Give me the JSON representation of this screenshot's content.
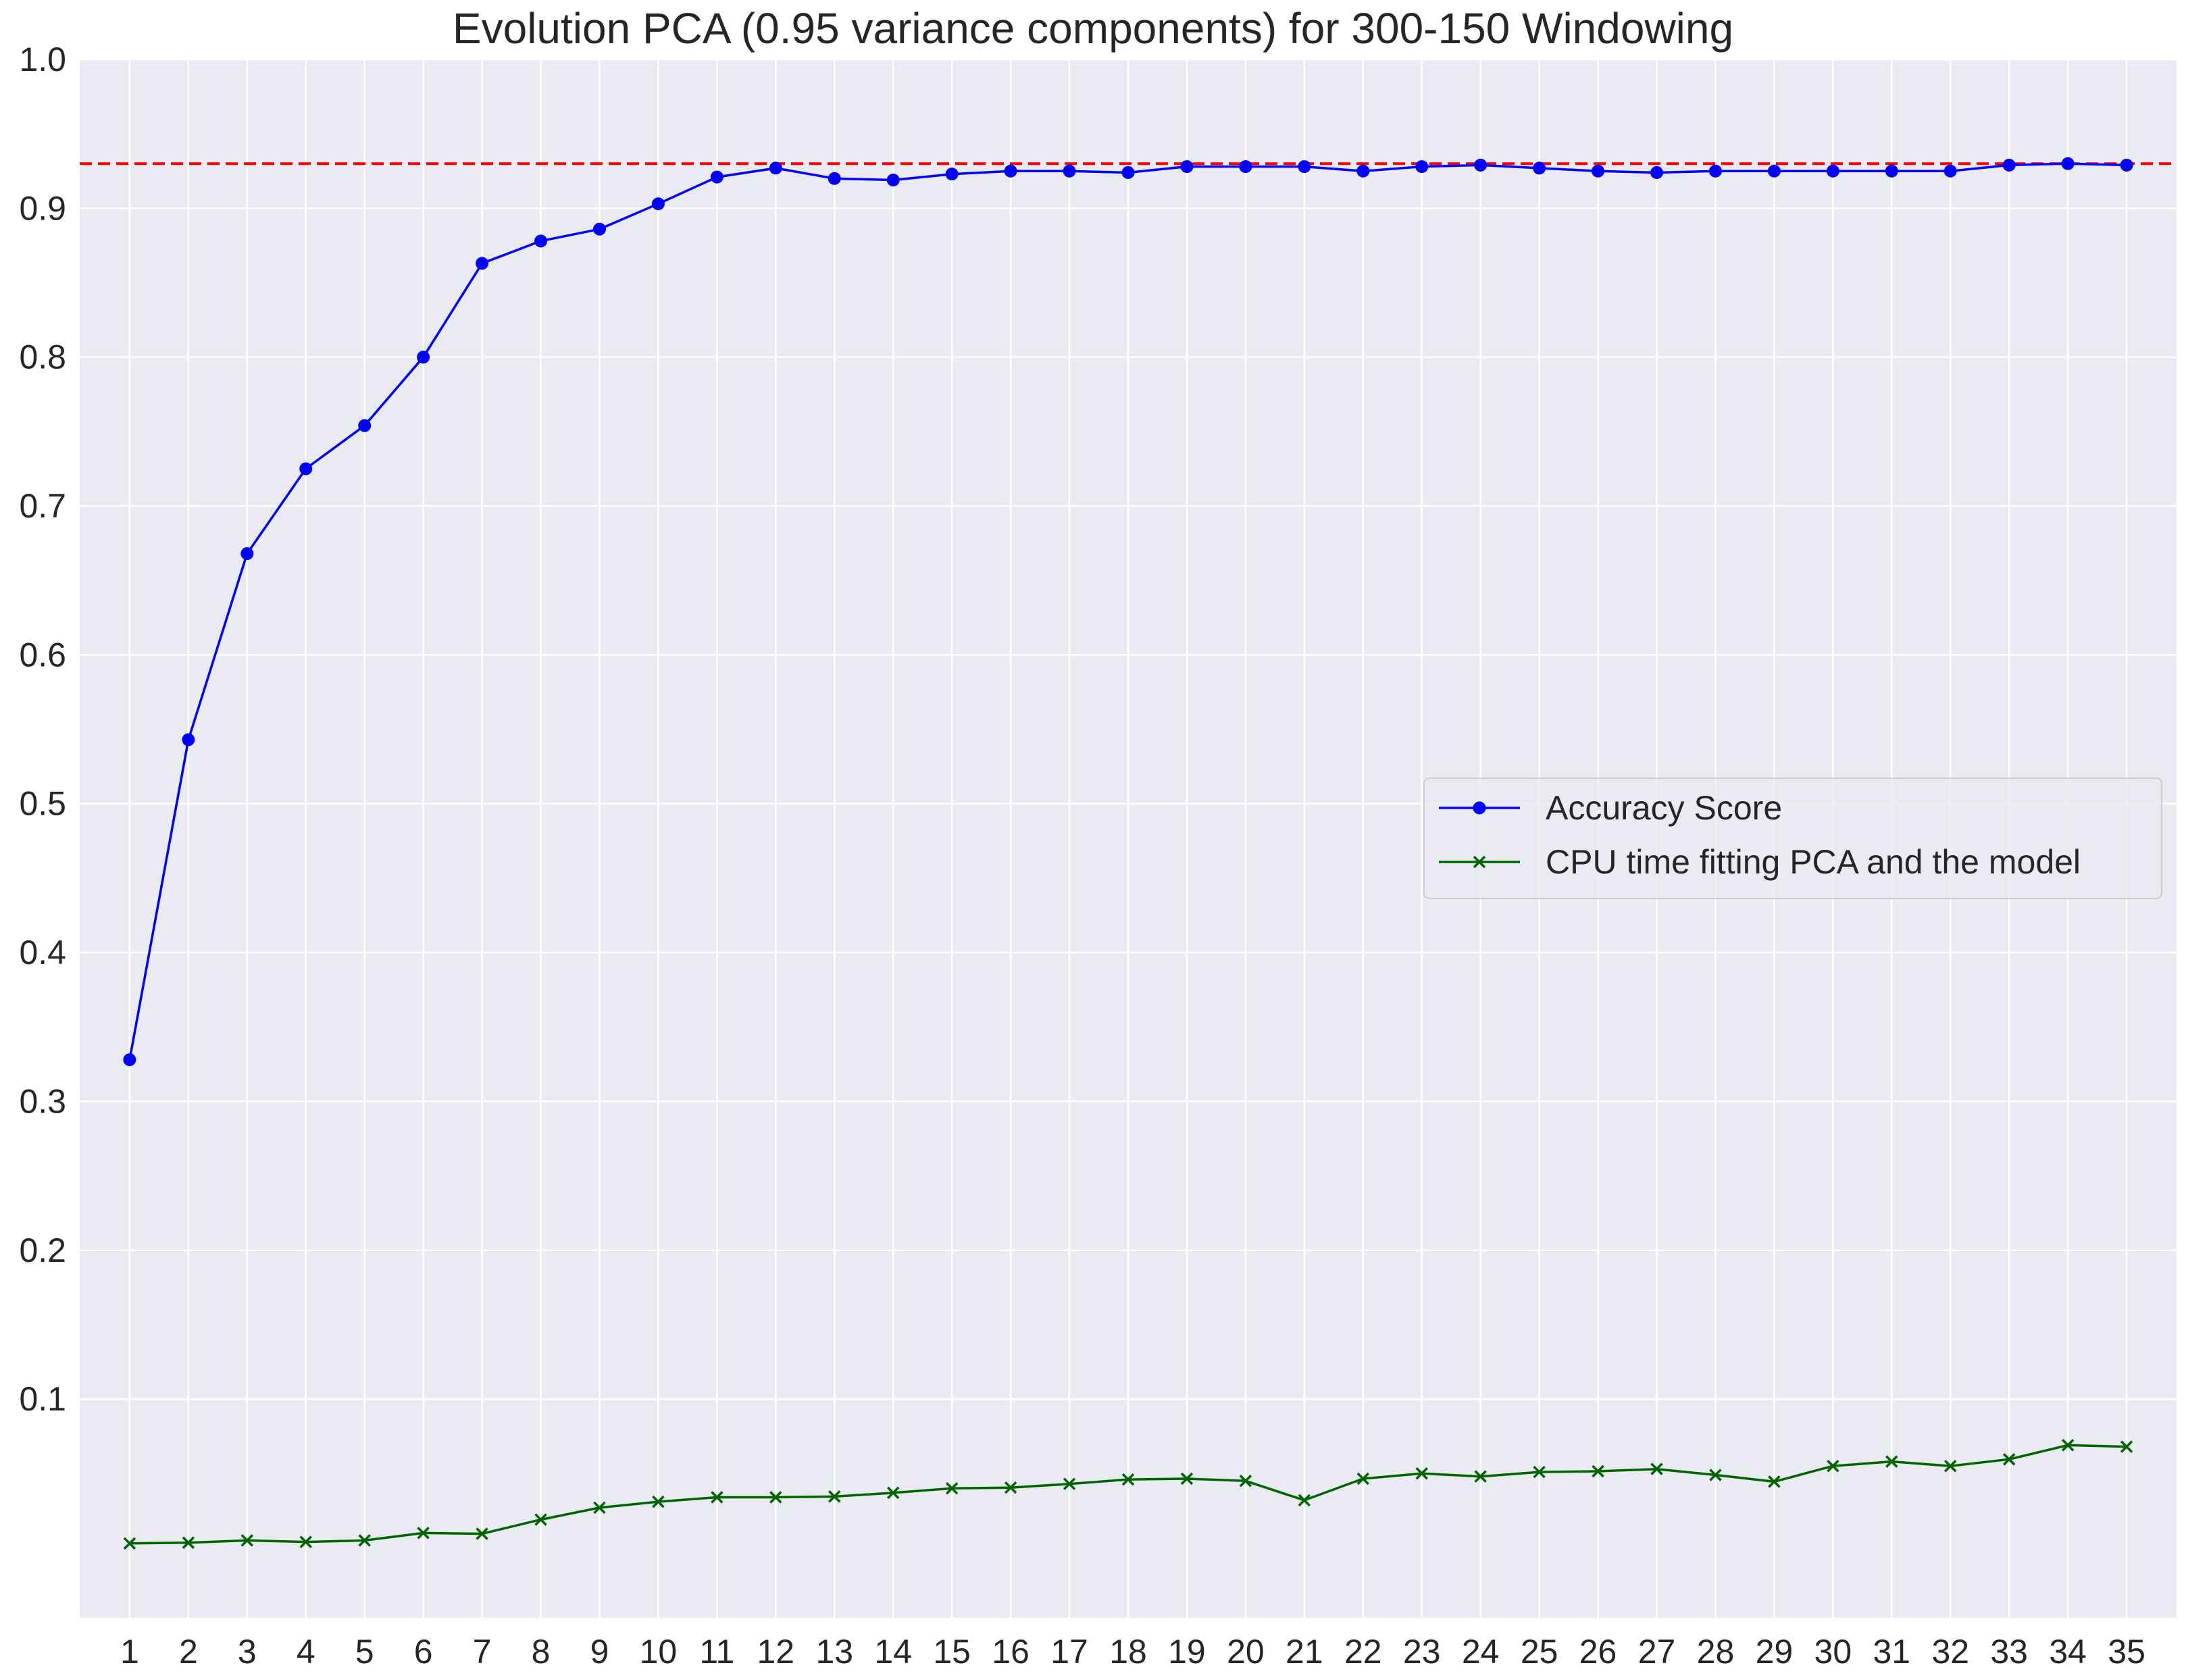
{
  "chart_data": {
    "type": "line",
    "title": "Evolution PCA (0.95 variance components) for 300-150 Windowing",
    "xlabel": "",
    "ylabel": "",
    "x": [
      1,
      2,
      3,
      4,
      5,
      6,
      7,
      8,
      9,
      10,
      11,
      12,
      13,
      14,
      15,
      16,
      17,
      18,
      19,
      20,
      21,
      22,
      23,
      24,
      25,
      26,
      27,
      28,
      29,
      30,
      31,
      32,
      33,
      34,
      35
    ],
    "xtick_labels": [
      "1",
      "2",
      "3",
      "4",
      "5",
      "6",
      "7",
      "8",
      "9",
      "10",
      "11",
      "12",
      "13",
      "14",
      "15",
      "16",
      "17",
      "18",
      "19",
      "20",
      "21",
      "22",
      "23",
      "24",
      "25",
      "26",
      "27",
      "28",
      "29",
      "30",
      "31",
      "32",
      "33",
      "34",
      "35"
    ],
    "ylim": [
      -0.047,
      1.0
    ],
    "yticks": [
      0.1,
      0.2,
      0.3,
      0.4,
      0.5,
      0.6,
      0.7,
      0.8,
      0.9,
      1.0
    ],
    "ytick_labels": [
      "0.1",
      "0.2",
      "0.3",
      "0.4",
      "0.5",
      "0.6",
      "0.7",
      "0.8",
      "0.9",
      "1.0"
    ],
    "grid": true,
    "legend_position": "center-right",
    "reference_line": {
      "y": 0.93,
      "style": "dashed",
      "color": "#ff0000"
    },
    "series": [
      {
        "name": "Accuracy Score",
        "color": "#0000ff",
        "marker": "circle",
        "values": [
          0.328,
          0.543,
          0.668,
          0.725,
          0.754,
          0.8,
          0.863,
          0.878,
          0.886,
          0.903,
          0.921,
          0.927,
          0.92,
          0.919,
          0.923,
          0.925,
          0.925,
          0.924,
          0.928,
          0.928,
          0.928,
          0.925,
          0.928,
          0.929,
          0.927,
          0.925,
          0.924,
          0.925,
          0.925,
          0.925,
          0.925,
          0.925,
          0.929,
          0.93,
          0.929
        ]
      },
      {
        "name": "CPU time fitting PCA and the model",
        "color": "#006400",
        "marker": "x",
        "values": [
          0.003,
          0.0035,
          0.005,
          0.004,
          0.005,
          0.01,
          0.0095,
          0.019,
          0.027,
          0.031,
          0.034,
          0.034,
          0.0345,
          0.037,
          0.04,
          0.0405,
          0.043,
          0.046,
          0.0465,
          0.045,
          0.032,
          0.0465,
          0.05,
          0.048,
          0.051,
          0.0515,
          0.053,
          0.049,
          0.0445,
          0.055,
          0.058,
          0.055,
          0.0595,
          0.069,
          0.068
        ]
      }
    ]
  }
}
